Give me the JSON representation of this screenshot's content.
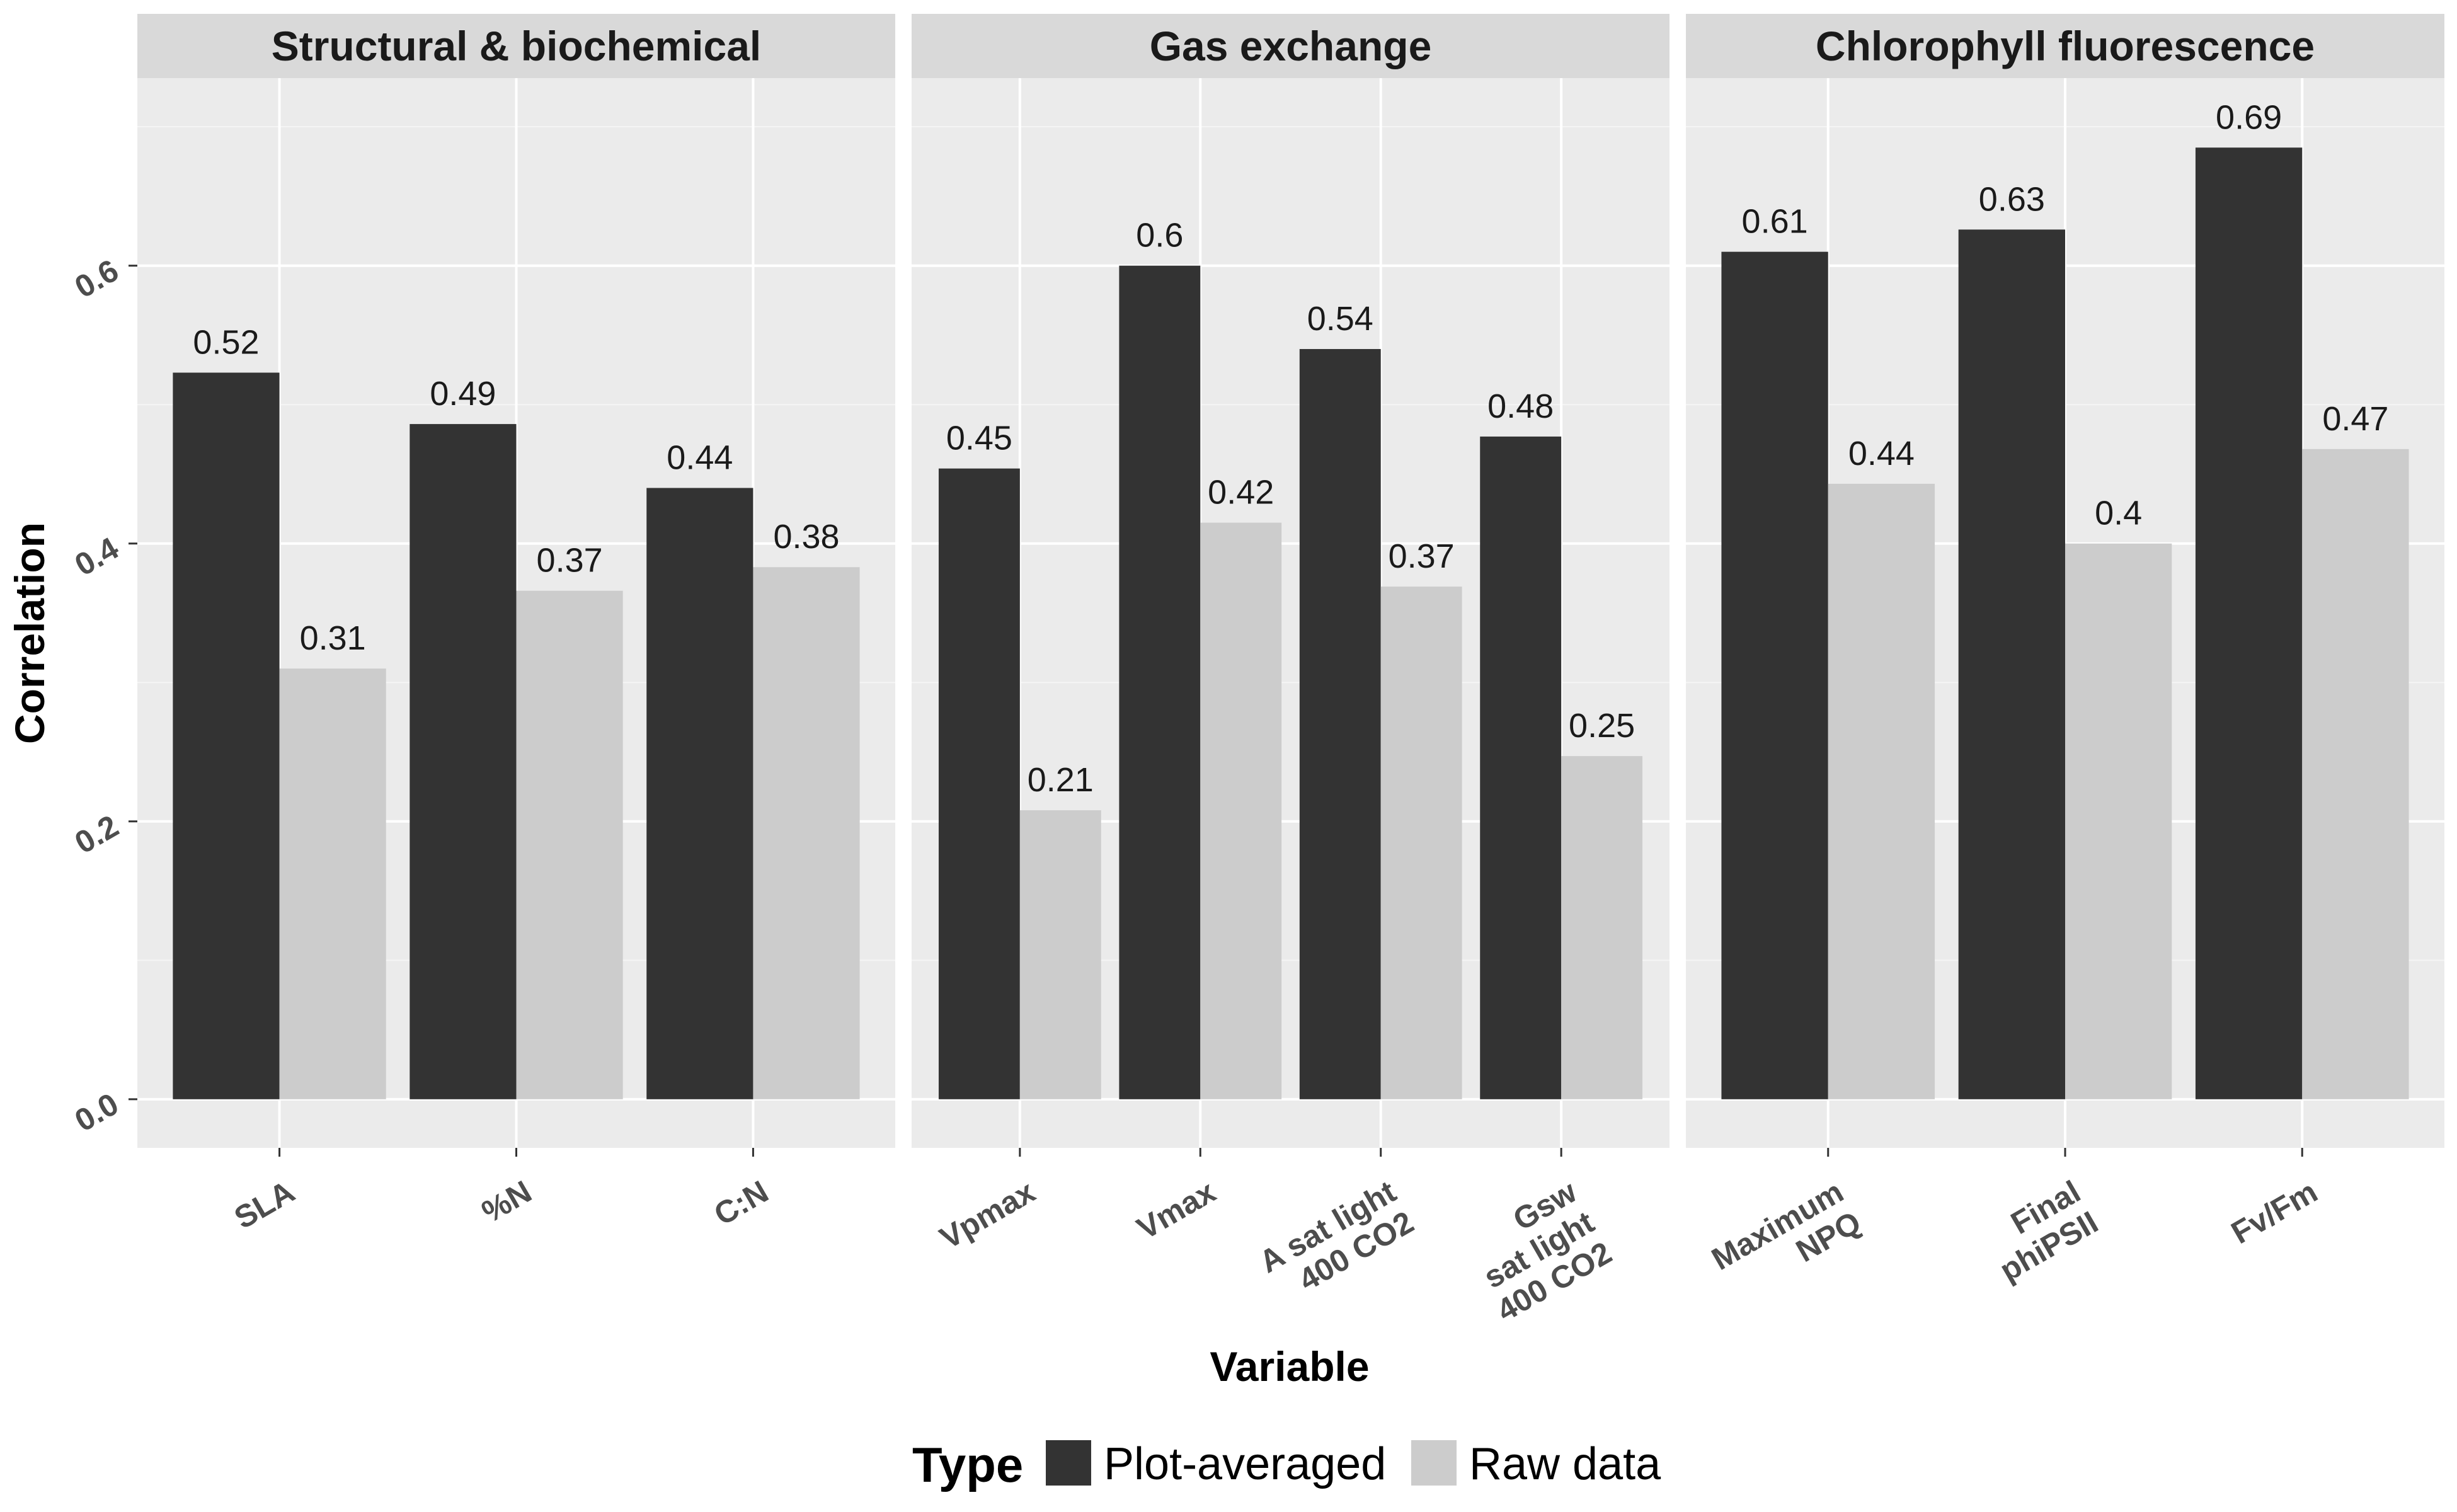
{
  "chart_data": {
    "type": "bar",
    "xlabel": "Variable",
    "ylabel": "Correlation",
    "ylim": [
      -0.035,
      0.735
    ],
    "yticks": [
      0.0,
      0.2,
      0.4,
      0.6
    ],
    "ytick_labels": [
      "0.0",
      "0.2",
      "0.4",
      "0.6"
    ],
    "grid": true,
    "legend": {
      "title": "Type",
      "placement": "bottom",
      "entries": [
        "Plot-averaged",
        "Raw data"
      ]
    },
    "series_colors": {
      "Plot-averaged": "#333333",
      "Raw data": "#cccccc"
    },
    "panels": [
      {
        "facet": "Structural & biochemical",
        "categories": [
          [
            "SLA"
          ],
          [
            "%N"
          ],
          [
            "C:N"
          ]
        ],
        "series": [
          {
            "name": "Plot-averaged",
            "values": [
              0.523,
              0.486,
              0.44
            ],
            "labels": [
              "0.52",
              "0.49",
              "0.44"
            ]
          },
          {
            "name": "Raw data",
            "values": [
              0.31,
              0.366,
              0.383
            ],
            "labels": [
              "0.31",
              "0.37",
              "0.38"
            ]
          }
        ]
      },
      {
        "facet": "Gas exchange",
        "categories": [
          [
            "Vpmax"
          ],
          [
            "Vmax"
          ],
          [
            "A sat light",
            "400 CO2"
          ],
          [
            "Gsw",
            "sat light",
            "400 CO2"
          ]
        ],
        "series": [
          {
            "name": "Plot-averaged",
            "values": [
              0.454,
              0.6,
              0.54,
              0.477
            ],
            "labels": [
              "0.45",
              "0.6",
              "0.54",
              "0.48"
            ]
          },
          {
            "name": "Raw data",
            "values": [
              0.208,
              0.415,
              0.369,
              0.247
            ],
            "labels": [
              "0.21",
              "0.42",
              "0.37",
              "0.25"
            ]
          }
        ]
      },
      {
        "facet": "Chlorophyll fluorescence",
        "categories": [
          [
            "Maximum",
            "NPQ"
          ],
          [
            "Final",
            "phiPSII"
          ],
          [
            "Fv/Fm"
          ]
        ],
        "series": [
          {
            "name": "Plot-averaged",
            "values": [
              0.61,
              0.626,
              0.685
            ],
            "labels": [
              "0.61",
              "0.63",
              "0.69"
            ]
          },
          {
            "name": "Raw data",
            "values": [
              0.443,
              0.4,
              0.468
            ],
            "labels": [
              "0.44",
              "0.4",
              "0.47"
            ]
          }
        ]
      }
    ]
  }
}
